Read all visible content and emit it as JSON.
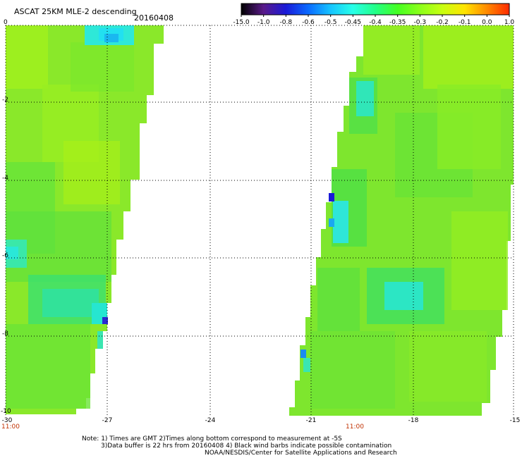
{
  "header": {
    "title": "ASCAT 25KM MLE-2 descending",
    "date": "20160408"
  },
  "colorbar": {
    "labels": [
      "-15.0",
      "-1.0",
      "-0.8",
      "-0.6",
      "-0.5",
      "-0.45",
      "-0.4",
      "-0.35",
      "-0.3",
      "-0.2",
      "-0.1",
      "0.0",
      "1.0"
    ],
    "colors": [
      "#000000",
      "#5a1a8a",
      "#1a1ad8",
      "#0a6aff",
      "#16c4ff",
      "#28ffe8",
      "#22ff88",
      "#44ff22",
      "#8cff1a",
      "#c8ff10",
      "#ffe400",
      "#ff8a00",
      "#ff2a00"
    ]
  },
  "axes": {
    "x_ticks": [
      "-30",
      "-27",
      "-24",
      "-21",
      "-18",
      "-15"
    ],
    "y_ticks": [
      "0",
      "-2",
      "-4",
      "-6",
      "-8",
      "-10"
    ],
    "time_labels": [
      "11:00",
      "11:00"
    ]
  },
  "notes": [
    "Note: 1) Times are GMT 2)Times along bottom correspond to measurement at -5S",
    "3)Data buffer is 22 hrs from 20160408 4) Black wind barbs indicate possible contamination",
    "NOAA/NESDIS/Center for Satellite Applications and Research"
  ]
}
